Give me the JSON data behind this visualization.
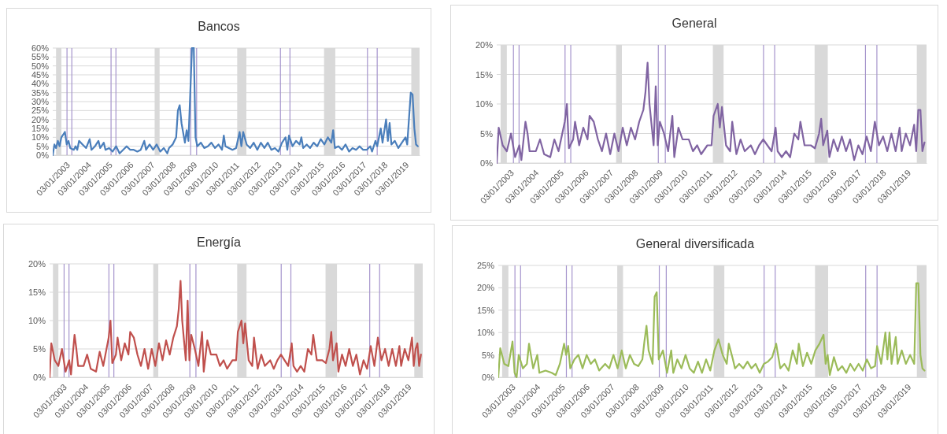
{
  "chart_data": [
    {
      "type": "line",
      "title": "Bancos",
      "ylim": [
        0,
        60
      ],
      "yticks": [
        {
          "value": 0,
          "label": "0%"
        },
        {
          "value": 5,
          "label": "5%"
        },
        {
          "value": 10,
          "label": "10%"
        },
        {
          "value": 15,
          "label": "15%"
        },
        {
          "value": 20,
          "label": "20%"
        },
        {
          "value": 25,
          "label": "25%"
        },
        {
          "value": 30,
          "label": "30%"
        },
        {
          "value": 35,
          "label": "35%"
        },
        {
          "value": 40,
          "label": "40%"
        },
        {
          "value": 45,
          "label": "45%"
        },
        {
          "value": 50,
          "label": "50%"
        },
        {
          "value": 55,
          "label": "55%"
        },
        {
          "value": 60,
          "label": "60%"
        }
      ],
      "xlim": [
        "2003-01-03",
        "2020-05-01"
      ],
      "xticks": [
        {
          "value": "2003-01-03",
          "label": "03/01/2003"
        },
        {
          "value": "2004-01-03",
          "label": "03/01/2004"
        },
        {
          "value": "2005-01-03",
          "label": "03/01/2005"
        },
        {
          "value": "2006-01-03",
          "label": "03/01/2006"
        },
        {
          "value": "2007-01-03",
          "label": "03/01/2007"
        },
        {
          "value": "2008-01-03",
          "label": "03/01/2008"
        },
        {
          "value": "2009-01-03",
          "label": "03/01/2009"
        },
        {
          "value": "2010-01-03",
          "label": "03/01/2010"
        },
        {
          "value": "2011-01-03",
          "label": "03/01/2011"
        },
        {
          "value": "2012-01-03",
          "label": "03/01/2012"
        },
        {
          "value": "2013-01-03",
          "label": "03/01/2013"
        },
        {
          "value": "2014-01-03",
          "label": "03/01/2014"
        },
        {
          "value": "2015-01-03",
          "label": "03/01/2015"
        },
        {
          "value": "2016-01-03",
          "label": "03/01/2016"
        },
        {
          "value": "2017-01-03",
          "label": "03/01/2017"
        },
        {
          "value": "2018-01-03",
          "label": "03/01/2018"
        },
        {
          "value": "2019-01-03",
          "label": "03/01/2019"
        }
      ],
      "grid": "y",
      "bands": [
        {
          "axis": "x",
          "from": "2003-03-01",
          "to": "2003-06-01",
          "color": "#d9d9d9"
        },
        {
          "axis": "x",
          "from": "2007-10-27",
          "to": "2008-01-20",
          "color": "#d9d9d9"
        },
        {
          "axis": "x",
          "from": "2011-09-20",
          "to": "2012-02-25",
          "color": "#d9d9d9"
        },
        {
          "axis": "x",
          "from": "2015-10-27",
          "to": "2016-05-08",
          "color": "#d9d9d9"
        },
        {
          "axis": "x",
          "from": "2019-12-10",
          "to": "2020-05-01",
          "color": "#d9d9d9"
        }
      ],
      "ref_lines": [
        {
          "axis": "x",
          "value": "2003-09-06",
          "color": "#a594cc"
        },
        {
          "axis": "x",
          "value": "2003-11-28",
          "color": "#a594cc"
        },
        {
          "axis": "x",
          "value": "2005-10-05",
          "color": "#a594cc"
        },
        {
          "axis": "x",
          "value": "2005-12-28",
          "color": "#a594cc"
        },
        {
          "axis": "x",
          "value": "2009-07-09",
          "color": "#a594cc"
        },
        {
          "axis": "x",
          "value": "2009-10-20",
          "color": "#a594cc"
        },
        {
          "axis": "x",
          "value": "2013-10-05",
          "color": "#a594cc"
        },
        {
          "axis": "x",
          "value": "2014-03-18",
          "color": "#a594cc"
        },
        {
          "axis": "x",
          "value": "2017-11-14",
          "color": "#a594cc"
        },
        {
          "axis": "x",
          "value": "2018-05-01",
          "color": "#a594cc"
        }
      ],
      "series": [
        {
          "color": "#4a7ebb",
          "x": [
            "2003-01-03",
            "2003-02",
            "2003-03",
            "2003-04",
            "2003-05",
            "2003-06",
            "2003-08",
            "2003-09",
            "2003-10",
            "2003-11",
            "2004-01",
            "2004-02",
            "2004-03",
            "2004-04",
            "2004-06",
            "2004-08",
            "2004-10",
            "2004-11",
            "2005-01",
            "2005-03",
            "2005-04",
            "2005-06",
            "2005-07",
            "2005-09",
            "2005-11",
            "2006-01",
            "2006-03",
            "2006-05",
            "2006-07",
            "2006-09",
            "2006-11",
            "2007-01",
            "2007-03",
            "2007-05",
            "2007-06",
            "2007-08",
            "2007-10",
            "2007-12",
            "2008-02",
            "2008-04",
            "2008-06",
            "2008-07",
            "2008-09",
            "2008-11",
            "2008-12",
            "2009-01",
            "2009-02",
            "2009-04",
            "2009-05",
            "2009-06",
            "2009-08",
            "2009-09",
            "2009-10",
            "2009-11",
            "2010-01",
            "2010-03",
            "2010-05",
            "2010-07",
            "2010-09",
            "2010-11",
            "2011-01",
            "2011-02",
            "2011-03",
            "2011-05",
            "2011-07",
            "2011-09",
            "2011-11",
            "2011-12",
            "2012-01",
            "2012-03",
            "2012-05",
            "2012-07",
            "2012-09",
            "2012-11",
            "2013-01",
            "2013-03",
            "2013-05",
            "2013-07",
            "2013-09",
            "2013-11",
            "2014-01",
            "2014-02",
            "2014-03",
            "2014-05",
            "2014-07",
            "2014-09",
            "2014-10",
            "2014-11",
            "2015-01",
            "2015-03",
            "2015-05",
            "2015-07",
            "2015-09",
            "2015-11",
            "2016-01",
            "2016-03",
            "2016-04",
            "2016-05",
            "2016-07",
            "2016-09",
            "2016-11",
            "2017-01",
            "2017-03",
            "2017-05",
            "2017-07",
            "2017-09",
            "2017-11",
            "2018-01",
            "2018-02",
            "2018-04",
            "2018-05",
            "2018-07",
            "2018-08",
            "2018-10",
            "2018-11",
            "2018-12",
            "2019-01",
            "2019-03",
            "2019-05",
            "2019-07",
            "2019-09",
            "2019-10",
            "2019-12",
            "2020-01",
            "2020-02",
            "2020-03",
            "2020-04"
          ],
          "values": [
            0,
            6,
            4,
            8,
            5,
            10,
            13,
            6,
            8,
            4,
            3,
            5,
            3,
            8,
            6,
            4,
            9,
            3,
            5,
            8,
            4,
            7,
            3,
            4,
            2,
            5,
            1,
            3,
            5,
            3,
            3,
            2,
            3,
            8,
            3,
            6,
            3,
            6,
            2,
            4,
            1,
            4,
            6,
            10,
            25,
            28,
            18,
            7,
            14,
            8,
            60,
            60,
            10,
            5,
            7,
            4,
            5,
            7,
            4,
            6,
            3,
            11,
            5,
            4,
            3,
            4,
            13,
            5,
            13,
            6,
            4,
            7,
            3,
            7,
            4,
            7,
            3,
            4,
            2,
            7,
            10,
            3,
            11,
            5,
            8,
            6,
            10,
            4,
            6,
            4,
            7,
            5,
            9,
            6,
            10,
            7,
            14,
            4,
            5,
            3,
            6,
            2,
            4,
            3,
            5,
            3,
            3,
            5,
            2,
            8,
            5,
            15,
            7,
            20,
            8,
            18,
            6,
            8,
            4,
            7,
            10,
            6,
            35,
            34,
            15,
            6,
            5
          ]
        }
      ]
    },
    {
      "type": "line",
      "title": "General",
      "ylim": [
        0,
        20
      ],
      "yticks": [
        {
          "value": 0,
          "label": "0%"
        },
        {
          "value": 5,
          "label": "5%"
        },
        {
          "value": 10,
          "label": "10%"
        },
        {
          "value": 15,
          "label": "15%"
        },
        {
          "value": 20,
          "label": "20%"
        }
      ],
      "xlim": [
        "2003-01-03",
        "2020-05-01"
      ],
      "xticks": [
        {
          "value": "2003-01-03",
          "label": "03/01/2003"
        },
        {
          "value": "2004-01-03",
          "label": "03/01/2004"
        },
        {
          "value": "2005-01-03",
          "label": "03/01/2005"
        },
        {
          "value": "2006-01-03",
          "label": "03/01/2006"
        },
        {
          "value": "2007-01-03",
          "label": "03/01/2007"
        },
        {
          "value": "2008-01-03",
          "label": "03/01/2008"
        },
        {
          "value": "2009-01-03",
          "label": "03/01/2009"
        },
        {
          "value": "2010-01-03",
          "label": "03/01/2010"
        },
        {
          "value": "2011-01-03",
          "label": "03/01/2011"
        },
        {
          "value": "2012-01-03",
          "label": "03/01/2012"
        },
        {
          "value": "2013-01-03",
          "label": "03/01/2013"
        },
        {
          "value": "2014-01-03",
          "label": "03/01/2014"
        },
        {
          "value": "2015-01-03",
          "label": "03/01/2015"
        },
        {
          "value": "2016-01-03",
          "label": "03/01/2016"
        },
        {
          "value": "2017-01-03",
          "label": "03/01/2017"
        },
        {
          "value": "2018-01-03",
          "label": "03/01/2018"
        },
        {
          "value": "2019-01-03",
          "label": "03/01/2019"
        }
      ],
      "grid": "y",
      "bands": [
        {
          "axis": "x",
          "from": "2003-03-01",
          "to": "2003-06-01",
          "color": "#d9d9d9"
        },
        {
          "axis": "x",
          "from": "2007-10-27",
          "to": "2008-01-20",
          "color": "#d9d9d9"
        },
        {
          "axis": "x",
          "from": "2011-09-20",
          "to": "2012-02-25",
          "color": "#d9d9d9"
        },
        {
          "axis": "x",
          "from": "2015-10-27",
          "to": "2016-05-08",
          "color": "#d9d9d9"
        },
        {
          "axis": "x",
          "from": "2019-12-10",
          "to": "2020-05-01",
          "color": "#d9d9d9"
        }
      ],
      "ref_lines": [
        {
          "axis": "x",
          "value": "2003-09-06",
          "color": "#a594cc"
        },
        {
          "axis": "x",
          "value": "2003-11-28",
          "color": "#a594cc"
        },
        {
          "axis": "x",
          "value": "2005-10-05",
          "color": "#a594cc"
        },
        {
          "axis": "x",
          "value": "2005-12-28",
          "color": "#a594cc"
        },
        {
          "axis": "x",
          "value": "2009-07-09",
          "color": "#a594cc"
        },
        {
          "axis": "x",
          "value": "2009-10-20",
          "color": "#a594cc"
        },
        {
          "axis": "x",
          "value": "2013-10-05",
          "color": "#a594cc"
        },
        {
          "axis": "x",
          "value": "2014-03-18",
          "color": "#a594cc"
        },
        {
          "axis": "x",
          "value": "2017-11-14",
          "color": "#a594cc"
        },
        {
          "axis": "x",
          "value": "2018-05-01",
          "color": "#a594cc"
        }
      ],
      "series": [
        {
          "color": "#8064a2",
          "x": [
            "2003-01-03",
            "2003-02",
            "2003-04",
            "2003-06",
            "2003-08",
            "2003-10",
            "2003-12",
            "2004-01",
            "2004-03",
            "2004-04",
            "2004-05",
            "2004-08",
            "2004-10",
            "2004-12",
            "2005-03",
            "2005-05",
            "2005-07",
            "2005-10",
            "2005-11",
            "2005-12",
            "2006-02",
            "2006-03",
            "2006-05",
            "2006-07",
            "2006-09",
            "2006-10",
            "2006-12",
            "2007-02",
            "2007-04",
            "2007-06",
            "2007-08",
            "2007-10",
            "2007-12",
            "2008-02",
            "2008-04",
            "2008-06",
            "2008-08",
            "2008-10",
            "2008-12",
            "2009-01",
            "2009-02",
            "2009-03",
            "2009-05",
            "2009-06",
            "2009-07",
            "2009-08",
            "2009-10",
            "2009-12",
            "2010-02",
            "2010-03",
            "2010-05",
            "2010-07",
            "2010-10",
            "2010-12",
            "2011-02",
            "2011-04",
            "2011-07",
            "2011-09",
            "2011-10",
            "2011-12",
            "2012-01",
            "2012-02",
            "2012-04",
            "2012-06",
            "2012-07",
            "2012-09",
            "2012-11",
            "2013-01",
            "2013-04",
            "2013-06",
            "2013-08",
            "2013-10",
            "2013-12",
            "2014-02",
            "2014-04",
            "2014-05",
            "2014-07",
            "2014-09",
            "2014-11",
            "2015-01",
            "2015-03",
            "2015-04",
            "2015-06",
            "2015-09",
            "2015-11",
            "2016-01",
            "2016-02",
            "2016-03",
            "2016-05",
            "2016-06",
            "2016-08",
            "2016-10",
            "2016-12",
            "2017-02",
            "2017-04",
            "2017-06",
            "2017-08",
            "2017-10",
            "2017-12",
            "2018-02",
            "2018-04",
            "2018-06",
            "2018-08",
            "2018-10",
            "2018-12",
            "2019-02",
            "2019-04",
            "2019-05",
            "2019-07",
            "2019-09",
            "2019-11",
            "2019-12",
            "2020-01",
            "2020-02",
            "2020-03",
            "2020-04"
          ],
          "values": [
            0,
            6,
            3,
            2,
            5,
            1,
            3,
            0.5,
            7,
            5,
            2,
            2,
            4,
            1.5,
            1,
            4,
            2,
            7,
            10,
            2.5,
            4,
            7,
            3,
            6,
            4,
            8,
            7,
            4,
            2,
            5,
            1.5,
            5,
            2,
            6,
            3,
            6,
            4,
            7,
            9,
            12,
            17,
            10,
            3,
            13,
            3,
            7,
            5,
            2,
            8,
            1,
            6,
            4,
            4,
            2,
            3,
            1.5,
            3,
            3,
            8,
            10,
            6,
            9.5,
            3,
            2,
            7,
            1.5,
            4,
            2,
            3,
            1.5,
            3,
            4,
            3,
            2,
            6,
            2,
            1,
            2,
            1,
            5,
            4,
            7,
            3,
            3,
            2.5,
            5,
            7.5,
            3,
            5.5,
            1,
            4,
            2,
            4.5,
            2,
            4,
            0.5,
            3,
            1.5,
            4.5,
            2,
            7,
            3,
            4.5,
            2,
            5,
            2,
            6,
            2,
            5,
            3,
            6.5,
            2,
            9,
            9,
            2,
            3.5
          ]
        }
      ]
    },
    {
      "type": "line",
      "title": "Energía",
      "ylim": [
        0,
        20
      ],
      "yticks": [
        {
          "value": 0,
          "label": "0%"
        },
        {
          "value": 5,
          "label": "5%"
        },
        {
          "value": 10,
          "label": "10%"
        },
        {
          "value": 15,
          "label": "15%"
        },
        {
          "value": 20,
          "label": "20%"
        }
      ],
      "xlim": [
        "2003-01-03",
        "2020-05-01"
      ],
      "xticks": [
        {
          "value": "2003-01-03",
          "label": "03/01/2003"
        },
        {
          "value": "2004-01-03",
          "label": "03/01/2004"
        },
        {
          "value": "2005-01-03",
          "label": "03/01/2005"
        },
        {
          "value": "2006-01-03",
          "label": "03/01/2006"
        },
        {
          "value": "2007-01-03",
          "label": "03/01/2007"
        },
        {
          "value": "2008-01-03",
          "label": "03/01/2008"
        },
        {
          "value": "2009-01-03",
          "label": "03/01/2009"
        },
        {
          "value": "2010-01-03",
          "label": "03/01/2010"
        },
        {
          "value": "2011-01-03",
          "label": "03/01/2011"
        },
        {
          "value": "2012-01-03",
          "label": "03/01/2012"
        },
        {
          "value": "2013-01-03",
          "label": "03/01/2013"
        },
        {
          "value": "2014-01-03",
          "label": "03/01/2014"
        },
        {
          "value": "2015-01-03",
          "label": "03/01/2015"
        },
        {
          "value": "2016-01-03",
          "label": "03/01/2016"
        },
        {
          "value": "2017-01-03",
          "label": "03/01/2017"
        },
        {
          "value": "2018-01-03",
          "label": "03/01/2018"
        },
        {
          "value": "2019-01-03",
          "label": "03/01/2019"
        }
      ],
      "grid": "y",
      "bands": [
        {
          "axis": "x",
          "from": "2003-03-01",
          "to": "2003-06-01",
          "color": "#d9d9d9"
        },
        {
          "axis": "x",
          "from": "2007-10-27",
          "to": "2008-01-20",
          "color": "#d9d9d9"
        },
        {
          "axis": "x",
          "from": "2011-09-20",
          "to": "2012-02-25",
          "color": "#d9d9d9"
        },
        {
          "axis": "x",
          "from": "2015-10-27",
          "to": "2016-05-08",
          "color": "#d9d9d9"
        },
        {
          "axis": "x",
          "from": "2019-12-10",
          "to": "2020-05-01",
          "color": "#d9d9d9"
        }
      ],
      "ref_lines": [
        {
          "axis": "x",
          "value": "2003-09-06",
          "color": "#a594cc"
        },
        {
          "axis": "x",
          "value": "2003-11-28",
          "color": "#a594cc"
        },
        {
          "axis": "x",
          "value": "2005-10-05",
          "color": "#a594cc"
        },
        {
          "axis": "x",
          "value": "2005-12-28",
          "color": "#a594cc"
        },
        {
          "axis": "x",
          "value": "2009-07-09",
          "color": "#a594cc"
        },
        {
          "axis": "x",
          "value": "2009-10-20",
          "color": "#a594cc"
        },
        {
          "axis": "x",
          "value": "2013-10-05",
          "color": "#a594cc"
        },
        {
          "axis": "x",
          "value": "2014-03-18",
          "color": "#a594cc"
        },
        {
          "axis": "x",
          "value": "2017-11-14",
          "color": "#a594cc"
        },
        {
          "axis": "x",
          "value": "2018-05-01",
          "color": "#a594cc"
        }
      ],
      "series": [
        {
          "color": "#c0504d",
          "x": [
            "2003-01-03",
            "2003-02",
            "2003-04",
            "2003-06",
            "2003-08",
            "2003-10",
            "2003-12",
            "2004-01",
            "2004-03",
            "2004-04",
            "2004-05",
            "2004-08",
            "2004-10",
            "2004-12",
            "2005-03",
            "2005-05",
            "2005-07",
            "2005-10",
            "2005-11",
            "2005-12",
            "2006-02",
            "2006-03",
            "2006-05",
            "2006-07",
            "2006-09",
            "2006-10",
            "2006-12",
            "2007-02",
            "2007-04",
            "2007-06",
            "2007-08",
            "2007-10",
            "2007-12",
            "2008-02",
            "2008-04",
            "2008-06",
            "2008-08",
            "2008-10",
            "2008-12",
            "2009-01",
            "2009-02",
            "2009-03",
            "2009-05",
            "2009-06",
            "2009-07",
            "2009-08",
            "2009-10",
            "2009-12",
            "2010-02",
            "2010-03",
            "2010-05",
            "2010-07",
            "2010-10",
            "2010-12",
            "2011-02",
            "2011-04",
            "2011-07",
            "2011-09",
            "2011-10",
            "2011-12",
            "2012-01",
            "2012-02",
            "2012-04",
            "2012-06",
            "2012-07",
            "2012-09",
            "2012-11",
            "2013-01",
            "2013-04",
            "2013-06",
            "2013-08",
            "2013-10",
            "2013-12",
            "2014-02",
            "2014-04",
            "2014-05",
            "2014-07",
            "2014-09",
            "2014-11",
            "2015-01",
            "2015-03",
            "2015-04",
            "2015-06",
            "2015-09",
            "2015-11",
            "2016-01",
            "2016-02",
            "2016-03",
            "2016-05",
            "2016-06",
            "2016-08",
            "2016-10",
            "2016-12",
            "2017-02",
            "2017-04",
            "2017-06",
            "2017-08",
            "2017-10",
            "2017-12",
            "2018-02",
            "2018-04",
            "2018-06",
            "2018-08",
            "2018-10",
            "2018-12",
            "2019-02",
            "2019-04",
            "2019-05",
            "2019-07",
            "2019-09",
            "2019-11",
            "2019-12",
            "2020-01",
            "2020-02",
            "2020-03",
            "2020-04"
          ],
          "values": [
            0,
            6,
            3,
            2,
            5,
            1,
            3,
            0.5,
            7.5,
            5,
            2,
            2,
            4,
            1.5,
            1,
            4.5,
            2,
            7,
            10,
            2.5,
            4,
            7,
            3,
            6,
            4,
            8,
            7,
            4,
            2,
            5,
            1.5,
            5,
            2,
            6,
            3,
            6.5,
            4,
            7,
            9,
            12,
            17,
            10,
            3,
            13.5,
            3,
            7.5,
            5,
            2,
            8,
            1,
            6.5,
            4,
            4,
            2,
            3,
            1.5,
            3,
            3,
            8,
            10,
            6,
            9.5,
            3,
            2,
            7,
            1.5,
            4,
            2,
            3,
            1.5,
            3,
            4,
            3,
            2,
            6,
            2,
            1,
            2,
            1,
            5,
            4,
            7.5,
            3,
            3,
            2.5,
            5,
            8,
            3,
            6,
            1,
            4,
            2,
            5,
            2,
            4,
            0.5,
            3,
            1.5,
            5.5,
            2,
            7,
            3,
            5,
            2,
            5,
            2,
            5.5,
            2,
            5,
            3,
            7,
            2,
            5,
            6,
            2,
            4
          ]
        }
      ]
    },
    {
      "type": "line",
      "title": "General diversificada",
      "ylim": [
        0,
        25
      ],
      "yticks": [
        {
          "value": 0,
          "label": "0%"
        },
        {
          "value": 5,
          "label": "5%"
        },
        {
          "value": 10,
          "label": "10%"
        },
        {
          "value": 15,
          "label": "15%"
        },
        {
          "value": 20,
          "label": "20%"
        },
        {
          "value": 25,
          "label": "25%"
        }
      ],
      "xlim": [
        "2003-01-03",
        "2020-05-01"
      ],
      "xticks": [
        {
          "value": "2003-01-03",
          "label": "03/01/2003"
        },
        {
          "value": "2004-01-03",
          "label": "03/01/2004"
        },
        {
          "value": "2005-01-03",
          "label": "03/01/2005"
        },
        {
          "value": "2006-01-03",
          "label": "03/01/2006"
        },
        {
          "value": "2007-01-03",
          "label": "03/01/2007"
        },
        {
          "value": "2008-01-03",
          "label": "03/01/2008"
        },
        {
          "value": "2009-01-03",
          "label": "03/01/2009"
        },
        {
          "value": "2010-01-03",
          "label": "03/01/2010"
        },
        {
          "value": "2011-01-03",
          "label": "03/01/2011"
        },
        {
          "value": "2012-01-03",
          "label": "03/01/2012"
        },
        {
          "value": "2013-01-03",
          "label": "03/01/2013"
        },
        {
          "value": "2014-01-03",
          "label": "03/01/2014"
        },
        {
          "value": "2015-01-03",
          "label": "03/01/2015"
        },
        {
          "value": "2016-01-03",
          "label": "03/01/2016"
        },
        {
          "value": "2017-01-03",
          "label": "03/01/2017"
        },
        {
          "value": "2018-01-03",
          "label": "03/01/2018"
        },
        {
          "value": "2019-01-03",
          "label": "03/01/2019"
        }
      ],
      "grid": "y",
      "bands": [
        {
          "axis": "x",
          "from": "2003-03-01",
          "to": "2003-06-01",
          "color": "#d9d9d9"
        },
        {
          "axis": "x",
          "from": "2007-10-27",
          "to": "2008-01-20",
          "color": "#d9d9d9"
        },
        {
          "axis": "x",
          "from": "2011-09-20",
          "to": "2012-02-25",
          "color": "#d9d9d9"
        },
        {
          "axis": "x",
          "from": "2015-10-27",
          "to": "2016-05-08",
          "color": "#d9d9d9"
        },
        {
          "axis": "x",
          "from": "2019-12-10",
          "to": "2020-05-01",
          "color": "#d9d9d9"
        }
      ],
      "ref_lines": [
        {
          "axis": "x",
          "value": "2003-09-06",
          "color": "#a594cc"
        },
        {
          "axis": "x",
          "value": "2003-11-28",
          "color": "#a594cc"
        },
        {
          "axis": "x",
          "value": "2005-10-05",
          "color": "#a594cc"
        },
        {
          "axis": "x",
          "value": "2005-12-28",
          "color": "#a594cc"
        },
        {
          "axis": "x",
          "value": "2009-07-09",
          "color": "#a594cc"
        },
        {
          "axis": "x",
          "value": "2009-10-20",
          "color": "#a594cc"
        },
        {
          "axis": "x",
          "value": "2013-10-05",
          "color": "#a594cc"
        },
        {
          "axis": "x",
          "value": "2014-03-18",
          "color": "#a594cc"
        },
        {
          "axis": "x",
          "value": "2017-11-14",
          "color": "#a594cc"
        },
        {
          "axis": "x",
          "value": "2018-05-01",
          "color": "#a594cc"
        }
      ],
      "series": [
        {
          "color": "#9bbb59",
          "x": [
            "2003-01-03",
            "2003-02",
            "2003-04",
            "2003-06",
            "2003-08",
            "2003-09",
            "2003-10",
            "2003-11",
            "2004-01",
            "2004-03",
            "2004-04",
            "2004-06",
            "2004-08",
            "2004-09",
            "2004-12",
            "2005-03",
            "2005-05",
            "2005-07",
            "2005-09",
            "2005-10",
            "2005-11",
            "2005-12",
            "2006-02",
            "2006-04",
            "2006-06",
            "2006-08",
            "2006-10",
            "2006-12",
            "2007-02",
            "2007-05",
            "2007-07",
            "2007-09",
            "2007-11",
            "2008-01",
            "2008-03",
            "2008-05",
            "2008-07",
            "2008-09",
            "2008-11",
            "2008-12",
            "2009-01",
            "2009-02",
            "2009-04",
            "2009-05",
            "2009-06",
            "2009-07",
            "2009-09",
            "2009-11",
            "2010-01",
            "2010-02",
            "2010-04",
            "2010-06",
            "2010-08",
            "2010-10",
            "2010-12",
            "2011-02",
            "2011-04",
            "2011-06",
            "2011-08",
            "2011-10",
            "2011-12",
            "2012-02",
            "2012-04",
            "2012-05",
            "2012-07",
            "2012-08",
            "2012-10",
            "2012-12",
            "2013-02",
            "2013-04",
            "2013-06",
            "2013-08",
            "2013-10",
            "2013-12",
            "2014-02",
            "2014-04",
            "2014-06",
            "2014-08",
            "2014-10",
            "2014-12",
            "2015-02",
            "2015-03",
            "2015-05",
            "2015-07",
            "2015-09",
            "2015-11",
            "2016-01",
            "2016-03",
            "2016-04",
            "2016-05",
            "2016-06",
            "2016-08",
            "2016-10",
            "2016-12",
            "2017-02",
            "2017-04",
            "2017-06",
            "2017-08",
            "2017-10",
            "2017-12",
            "2018-02",
            "2018-04",
            "2018-05",
            "2018-07",
            "2018-09",
            "2018-10",
            "2018-11",
            "2018-12",
            "2019-02",
            "2019-03",
            "2019-05",
            "2019-07",
            "2019-09",
            "2019-11",
            "2019-12",
            "2020-01",
            "2020-02",
            "2020-03",
            "2020-04"
          ],
          "values": [
            0,
            6.5,
            3,
            2.5,
            8,
            1,
            0,
            5,
            2,
            3,
            7.5,
            2,
            5,
            1,
            1.5,
            1,
            0.5,
            3,
            7.5,
            5,
            7,
            2,
            4,
            5,
            2,
            5,
            3,
            4,
            1.5,
            3,
            2,
            5,
            2,
            6,
            2,
            5,
            3,
            2.5,
            4,
            8,
            11.5,
            6,
            3,
            18,
            19,
            4,
            6,
            1,
            6,
            1,
            4,
            2,
            5,
            2,
            1,
            3.5,
            1,
            4,
            1.5,
            6,
            8.5,
            5,
            3,
            7.5,
            4,
            2,
            3,
            2,
            3.5,
            2,
            3,
            1,
            3,
            3.5,
            4.5,
            7.5,
            2,
            3,
            1.5,
            6,
            3,
            7.5,
            2.5,
            5.5,
            3,
            6,
            7.5,
            9.5,
            3,
            5,
            0.5,
            4.5,
            1.5,
            2.5,
            1,
            3,
            1.5,
            3,
            1.5,
            4,
            2,
            2.5,
            7,
            3,
            10,
            4,
            10,
            3,
            9,
            3,
            6,
            3,
            5,
            3,
            21,
            21,
            5,
            2,
            1.5
          ]
        }
      ]
    }
  ]
}
